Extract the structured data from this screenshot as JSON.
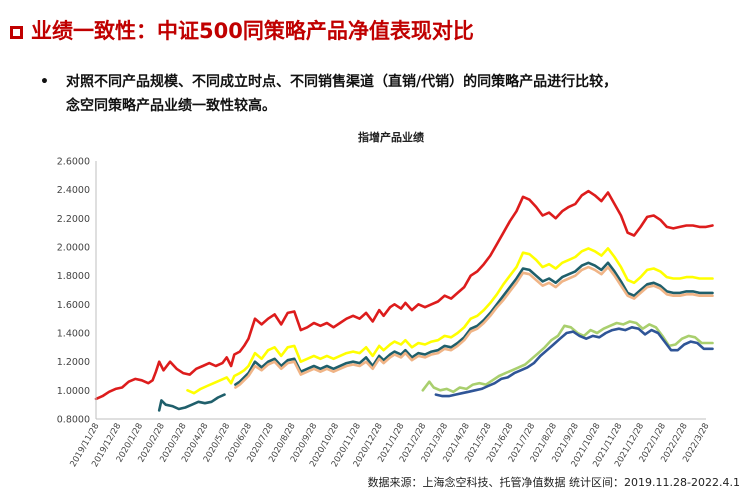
{
  "slide": {
    "title": "业绩一致性：中证500同策略产品净值表现对比",
    "bullet_lines": [
      "对照不同产品规模、不同成立时点、不同销售渠道（直销/代销）的同策略产品进行比较，",
      "念空同策略产品业绩一致性较高。"
    ],
    "source": "数据来源：上海念空科技、托管净值数据    统计区间：2019.11.28-2022.4.1"
  },
  "chart_data": {
    "type": "line",
    "title": "指增产品业绩",
    "xlabel": "",
    "ylabel": "",
    "ylim": [
      0.8,
      2.6
    ],
    "yticks": [
      "0.8000",
      "1.0000",
      "1.2000",
      "1.4000",
      "1.6000",
      "1.8000",
      "2.0000",
      "2.2000",
      "2.4000",
      "2.6000"
    ],
    "x_ticks": [
      "2019/11/28",
      "2019/12/28",
      "2020/1/28",
      "2020/2/28",
      "2020/3/28",
      "2020/4/28",
      "2020/5/28",
      "2020/6/28",
      "2020/7/28",
      "2020/8/28",
      "2020/9/28",
      "2020/10/28",
      "2020/11/28",
      "2020/12/28",
      "2021/1/28",
      "2021/2/28",
      "2021/3/28",
      "2021/4/28",
      "2021/5/28",
      "2021/6/28",
      "2021/7/28",
      "2021/8/28",
      "2021/9/28",
      "2021/10/28",
      "2021/11/28",
      "2021/12/28",
      "2022/1/28",
      "2022/2/28",
      "2022/3/28"
    ],
    "grid": false,
    "legend": "none",
    "series": [
      {
        "color": "#dd1c1c",
        "x": [
          0,
          0.3,
          0.6,
          0.9,
          1.2,
          1.5,
          1.8,
          2.1,
          2.4,
          2.6,
          2.75,
          2.9,
          3.1,
          3.4,
          3.7,
          4.0,
          4.3,
          4.6,
          4.9,
          5.2,
          5.5,
          5.8,
          6.0,
          6.2,
          6.35,
          6.6,
          6.8,
          7.0,
          7.3,
          7.6,
          7.9,
          8.2,
          8.5,
          8.8,
          9.1,
          9.4,
          9.7,
          10.0,
          10.3,
          10.6,
          10.9,
          11.2,
          11.5,
          11.8,
          12.1,
          12.4,
          12.7,
          13.0,
          13.2,
          13.5,
          13.7,
          14.0,
          14.2,
          14.5,
          14.8,
          15.1,
          15.4,
          15.7,
          16.0,
          16.3,
          16.6,
          16.9,
          17.2,
          17.5,
          17.8,
          18.1,
          18.4,
          18.7,
          19.0,
          19.3,
          19.6,
          19.9,
          20.2,
          20.5,
          20.8,
          21.1,
          21.4,
          21.7,
          22.0,
          22.3,
          22.6,
          22.9,
          23.2,
          23.5,
          23.8,
          24.1,
          24.4,
          24.7,
          25.0,
          25.3,
          25.6,
          25.9,
          26.2,
          26.5,
          26.8,
          27.1,
          27.4,
          27.7,
          28.0,
          28.3
        ],
        "values": [
          0.94,
          0.96,
          0.99,
          1.01,
          1.02,
          1.06,
          1.08,
          1.07,
          1.05,
          1.07,
          1.13,
          1.2,
          1.14,
          1.2,
          1.15,
          1.12,
          1.11,
          1.15,
          1.17,
          1.19,
          1.17,
          1.19,
          1.23,
          1.17,
          1.25,
          1.27,
          1.31,
          1.36,
          1.5,
          1.46,
          1.5,
          1.53,
          1.46,
          1.54,
          1.55,
          1.42,
          1.44,
          1.47,
          1.45,
          1.47,
          1.44,
          1.47,
          1.5,
          1.52,
          1.5,
          1.54,
          1.48,
          1.56,
          1.52,
          1.58,
          1.6,
          1.57,
          1.61,
          1.56,
          1.6,
          1.58,
          1.6,
          1.62,
          1.66,
          1.64,
          1.68,
          1.72,
          1.8,
          1.83,
          1.88,
          1.94,
          2.02,
          2.1,
          2.18,
          2.25,
          2.35,
          2.33,
          2.28,
          2.22,
          2.24,
          2.2,
          2.25,
          2.28,
          2.3,
          2.36,
          2.39,
          2.36,
          2.32,
          2.38,
          2.3,
          2.22,
          2.1,
          2.08,
          2.14,
          2.21,
          2.22,
          2.19,
          2.14,
          2.13,
          2.14,
          2.15,
          2.15,
          2.14,
          2.14,
          2.15
        ]
      },
      {
        "color": "#ffff00",
        "x": [
          4.2,
          4.5,
          4.8,
          5.1,
          5.4,
          5.7,
          6.0,
          6.2,
          6.35,
          6.6,
          6.8,
          7.0,
          7.3,
          7.6,
          7.9,
          8.2,
          8.5,
          8.8,
          9.1,
          9.4,
          9.7,
          10.0,
          10.3,
          10.6,
          10.9,
          11.2,
          11.5,
          11.8,
          12.1,
          12.4,
          12.7,
          13.0,
          13.2,
          13.5,
          13.7,
          14.0,
          14.2,
          14.5,
          14.8,
          15.1,
          15.4,
          15.7,
          16.0,
          16.3,
          16.6,
          16.9,
          17.2,
          17.5,
          17.8,
          18.1,
          18.4,
          18.7,
          19.0,
          19.3,
          19.6,
          19.9,
          20.2,
          20.5,
          20.8,
          21.1,
          21.4,
          21.7,
          22.0,
          22.3,
          22.6,
          22.9,
          23.2,
          23.5,
          23.8,
          24.1,
          24.4,
          24.7,
          25.0,
          25.3,
          25.6,
          25.9,
          26.2,
          26.5,
          26.8,
          27.1,
          27.4,
          27.7,
          28.0,
          28.3
        ],
        "values": [
          1.0,
          0.98,
          1.01,
          1.03,
          1.05,
          1.07,
          1.09,
          1.05,
          1.1,
          1.12,
          1.14,
          1.17,
          1.26,
          1.22,
          1.28,
          1.3,
          1.24,
          1.3,
          1.31,
          1.2,
          1.22,
          1.24,
          1.22,
          1.24,
          1.22,
          1.24,
          1.26,
          1.27,
          1.26,
          1.3,
          1.24,
          1.31,
          1.28,
          1.32,
          1.34,
          1.32,
          1.35,
          1.3,
          1.33,
          1.32,
          1.34,
          1.35,
          1.38,
          1.37,
          1.4,
          1.44,
          1.5,
          1.52,
          1.56,
          1.61,
          1.67,
          1.74,
          1.8,
          1.86,
          1.96,
          1.95,
          1.91,
          1.86,
          1.88,
          1.85,
          1.89,
          1.91,
          1.93,
          1.97,
          1.99,
          1.97,
          1.94,
          1.99,
          1.93,
          1.86,
          1.77,
          1.75,
          1.79,
          1.84,
          1.85,
          1.83,
          1.79,
          1.78,
          1.78,
          1.79,
          1.79,
          1.78,
          1.78,
          1.78
        ]
      },
      {
        "color": "#1f5f6b",
        "x": [
          6.4,
          6.6,
          6.8,
          7.0,
          7.3,
          7.6,
          7.9,
          8.2,
          8.5,
          8.8,
          9.1,
          9.4,
          9.7,
          10.0,
          10.3,
          10.6,
          10.9,
          11.2,
          11.5,
          11.8,
          12.1,
          12.4,
          12.7,
          13.0,
          13.2,
          13.5,
          13.7,
          14.0,
          14.2,
          14.5,
          14.8,
          15.1,
          15.4,
          15.7,
          16.0,
          16.3,
          16.6,
          16.9,
          17.2,
          17.5,
          17.8,
          18.1,
          18.4,
          18.7,
          19.0,
          19.3,
          19.6,
          19.9,
          20.2,
          20.5,
          20.8,
          21.1,
          21.4,
          21.7,
          22.0,
          22.3,
          22.6,
          22.9,
          23.2,
          23.5,
          23.8,
          24.1,
          24.4,
          24.7,
          25.0,
          25.3,
          25.6,
          25.9,
          26.2,
          26.5,
          26.8,
          27.1,
          27.4,
          27.7,
          28.0,
          28.3
        ],
        "values": [
          1.04,
          1.06,
          1.09,
          1.12,
          1.2,
          1.16,
          1.2,
          1.22,
          1.17,
          1.21,
          1.22,
          1.13,
          1.15,
          1.17,
          1.15,
          1.17,
          1.15,
          1.17,
          1.19,
          1.2,
          1.19,
          1.23,
          1.17,
          1.24,
          1.21,
          1.25,
          1.27,
          1.25,
          1.28,
          1.23,
          1.26,
          1.25,
          1.27,
          1.28,
          1.31,
          1.3,
          1.33,
          1.37,
          1.43,
          1.45,
          1.49,
          1.54,
          1.6,
          1.66,
          1.72,
          1.78,
          1.85,
          1.84,
          1.8,
          1.76,
          1.78,
          1.75,
          1.79,
          1.81,
          1.83,
          1.87,
          1.89,
          1.87,
          1.84,
          1.89,
          1.83,
          1.76,
          1.68,
          1.66,
          1.7,
          1.74,
          1.75,
          1.73,
          1.69,
          1.68,
          1.68,
          1.69,
          1.69,
          1.68,
          1.68,
          1.68
        ]
      },
      {
        "color": "#f0b486",
        "x": [
          6.4,
          6.6,
          6.8,
          7.0,
          7.3,
          7.6,
          7.9,
          8.2,
          8.5,
          8.8,
          9.1,
          9.4,
          9.7,
          10.0,
          10.3,
          10.6,
          10.9,
          11.2,
          11.5,
          11.8,
          12.1,
          12.4,
          12.7,
          13.0,
          13.2,
          13.5,
          13.7,
          14.0,
          14.2,
          14.5,
          14.8,
          15.1,
          15.4,
          15.7,
          16.0,
          16.3,
          16.6,
          16.9,
          17.2,
          17.5,
          17.8,
          18.1,
          18.4,
          18.7,
          19.0,
          19.3,
          19.6,
          19.9,
          20.2,
          20.5,
          20.8,
          21.1,
          21.4,
          21.7,
          22.0,
          22.3,
          22.6,
          22.9,
          23.2,
          23.5,
          23.8,
          24.1,
          24.4,
          24.7,
          25.0,
          25.3,
          25.6,
          25.9,
          26.2,
          26.5,
          26.8,
          27.1,
          27.4,
          27.7,
          28.0,
          28.3
        ],
        "values": [
          1.02,
          1.04,
          1.07,
          1.1,
          1.17,
          1.14,
          1.18,
          1.2,
          1.15,
          1.19,
          1.2,
          1.11,
          1.13,
          1.15,
          1.13,
          1.15,
          1.13,
          1.15,
          1.17,
          1.18,
          1.17,
          1.2,
          1.15,
          1.22,
          1.19,
          1.23,
          1.25,
          1.23,
          1.26,
          1.21,
          1.24,
          1.23,
          1.25,
          1.26,
          1.29,
          1.28,
          1.31,
          1.35,
          1.41,
          1.43,
          1.47,
          1.52,
          1.58,
          1.63,
          1.69,
          1.75,
          1.82,
          1.81,
          1.77,
          1.73,
          1.75,
          1.72,
          1.76,
          1.78,
          1.8,
          1.84,
          1.86,
          1.84,
          1.81,
          1.86,
          1.8,
          1.73,
          1.66,
          1.64,
          1.68,
          1.72,
          1.73,
          1.71,
          1.67,
          1.66,
          1.66,
          1.67,
          1.67,
          1.66,
          1.66,
          1.66
        ]
      },
      {
        "color": "#1f5f6b",
        "x": [
          2.9,
          3.0,
          3.2,
          3.5,
          3.8,
          4.1,
          4.4,
          4.7,
          5.0,
          5.3,
          5.6,
          5.9
        ],
        "values": [
          0.86,
          0.93,
          0.9,
          0.89,
          0.87,
          0.88,
          0.9,
          0.92,
          0.91,
          0.92,
          0.95,
          0.97
        ]
      },
      {
        "color": "#a9cf6e",
        "x": [
          15.0,
          15.3,
          15.5,
          15.8,
          16.1,
          16.4,
          16.7,
          17.0,
          17.3,
          17.6,
          17.9,
          18.2,
          18.5,
          18.8,
          19.1,
          19.4,
          19.7,
          20.0,
          20.3,
          20.6,
          20.9,
          21.2,
          21.5,
          21.8,
          22.1,
          22.4,
          22.7,
          23.0,
          23.3,
          23.6,
          23.9,
          24.2,
          24.5,
          24.8,
          25.1,
          25.4,
          25.7,
          26.0,
          26.3,
          26.6,
          26.9,
          27.2,
          27.5,
          27.8,
          28.1,
          28.3
        ],
        "values": [
          1.0,
          1.06,
          1.02,
          1.0,
          1.01,
          0.99,
          1.02,
          1.01,
          1.04,
          1.05,
          1.04,
          1.07,
          1.1,
          1.12,
          1.14,
          1.16,
          1.18,
          1.22,
          1.26,
          1.3,
          1.35,
          1.38,
          1.45,
          1.44,
          1.4,
          1.38,
          1.42,
          1.4,
          1.43,
          1.45,
          1.47,
          1.46,
          1.48,
          1.47,
          1.43,
          1.46,
          1.44,
          1.38,
          1.31,
          1.32,
          1.36,
          1.38,
          1.37,
          1.33,
          1.33,
          1.33
        ]
      },
      {
        "color": "#2f5597",
        "x": [
          15.6,
          15.9,
          16.2,
          16.5,
          16.8,
          17.1,
          17.4,
          17.7,
          18.0,
          18.3,
          18.6,
          18.9,
          19.2,
          19.5,
          19.8,
          20.1,
          20.4,
          20.7,
          21.0,
          21.3,
          21.6,
          21.9,
          22.2,
          22.5,
          22.8,
          23.1,
          23.4,
          23.7,
          24.0,
          24.3,
          24.6,
          24.9,
          25.2,
          25.5,
          25.8,
          26.1,
          26.4,
          26.7,
          27.0,
          27.3,
          27.6,
          27.9,
          28.1,
          28.3
        ],
        "values": [
          0.97,
          0.96,
          0.96,
          0.97,
          0.98,
          0.99,
          1.0,
          1.01,
          1.03,
          1.05,
          1.08,
          1.09,
          1.12,
          1.14,
          1.16,
          1.19,
          1.24,
          1.28,
          1.32,
          1.36,
          1.4,
          1.41,
          1.38,
          1.36,
          1.38,
          1.37,
          1.4,
          1.42,
          1.43,
          1.42,
          1.44,
          1.43,
          1.39,
          1.42,
          1.4,
          1.34,
          1.28,
          1.28,
          1.32,
          1.34,
          1.33,
          1.29,
          1.29,
          1.29
        ]
      }
    ]
  }
}
